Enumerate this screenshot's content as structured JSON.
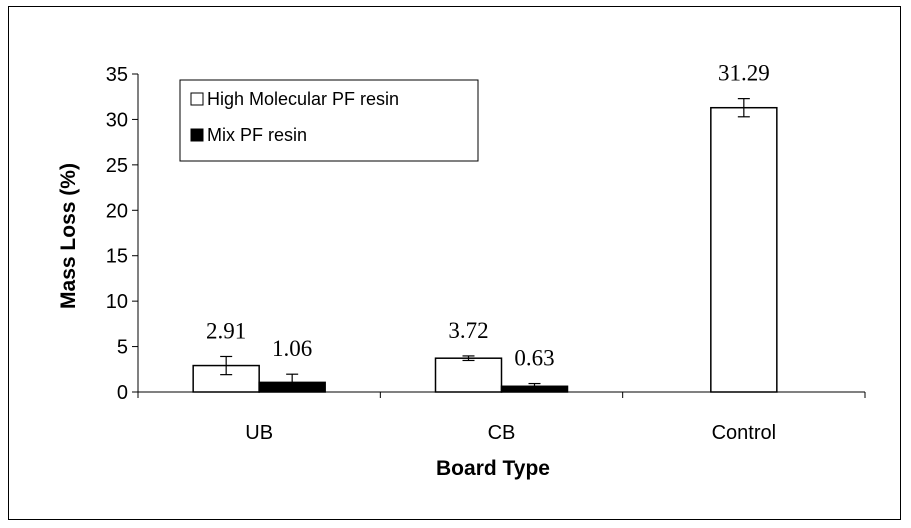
{
  "chart_data": {
    "type": "bar",
    "title": "",
    "xlabel": "Board Type",
    "ylabel": "Mass Loss (%)",
    "ylim": [
      0,
      35
    ],
    "yticks": [
      0,
      5,
      10,
      15,
      20,
      25,
      30,
      35
    ],
    "categories": [
      "UB",
      "CB",
      "Control"
    ],
    "series": [
      {
        "name": "High Molecular PF resin",
        "color": "#ffffff",
        "values": [
          2.91,
          3.72,
          31.29
        ],
        "labels": [
          "2.91",
          "3.72",
          "31.29"
        ],
        "error": [
          1.0,
          0.25,
          1.0
        ]
      },
      {
        "name": "Mix PF resin",
        "color": "#000000",
        "values": [
          1.06,
          0.63,
          null
        ],
        "labels": [
          "1.06",
          "0.63",
          ""
        ],
        "error": [
          0.9,
          0.3,
          null
        ]
      }
    ],
    "legend_position": "top-left",
    "grid": false
  }
}
